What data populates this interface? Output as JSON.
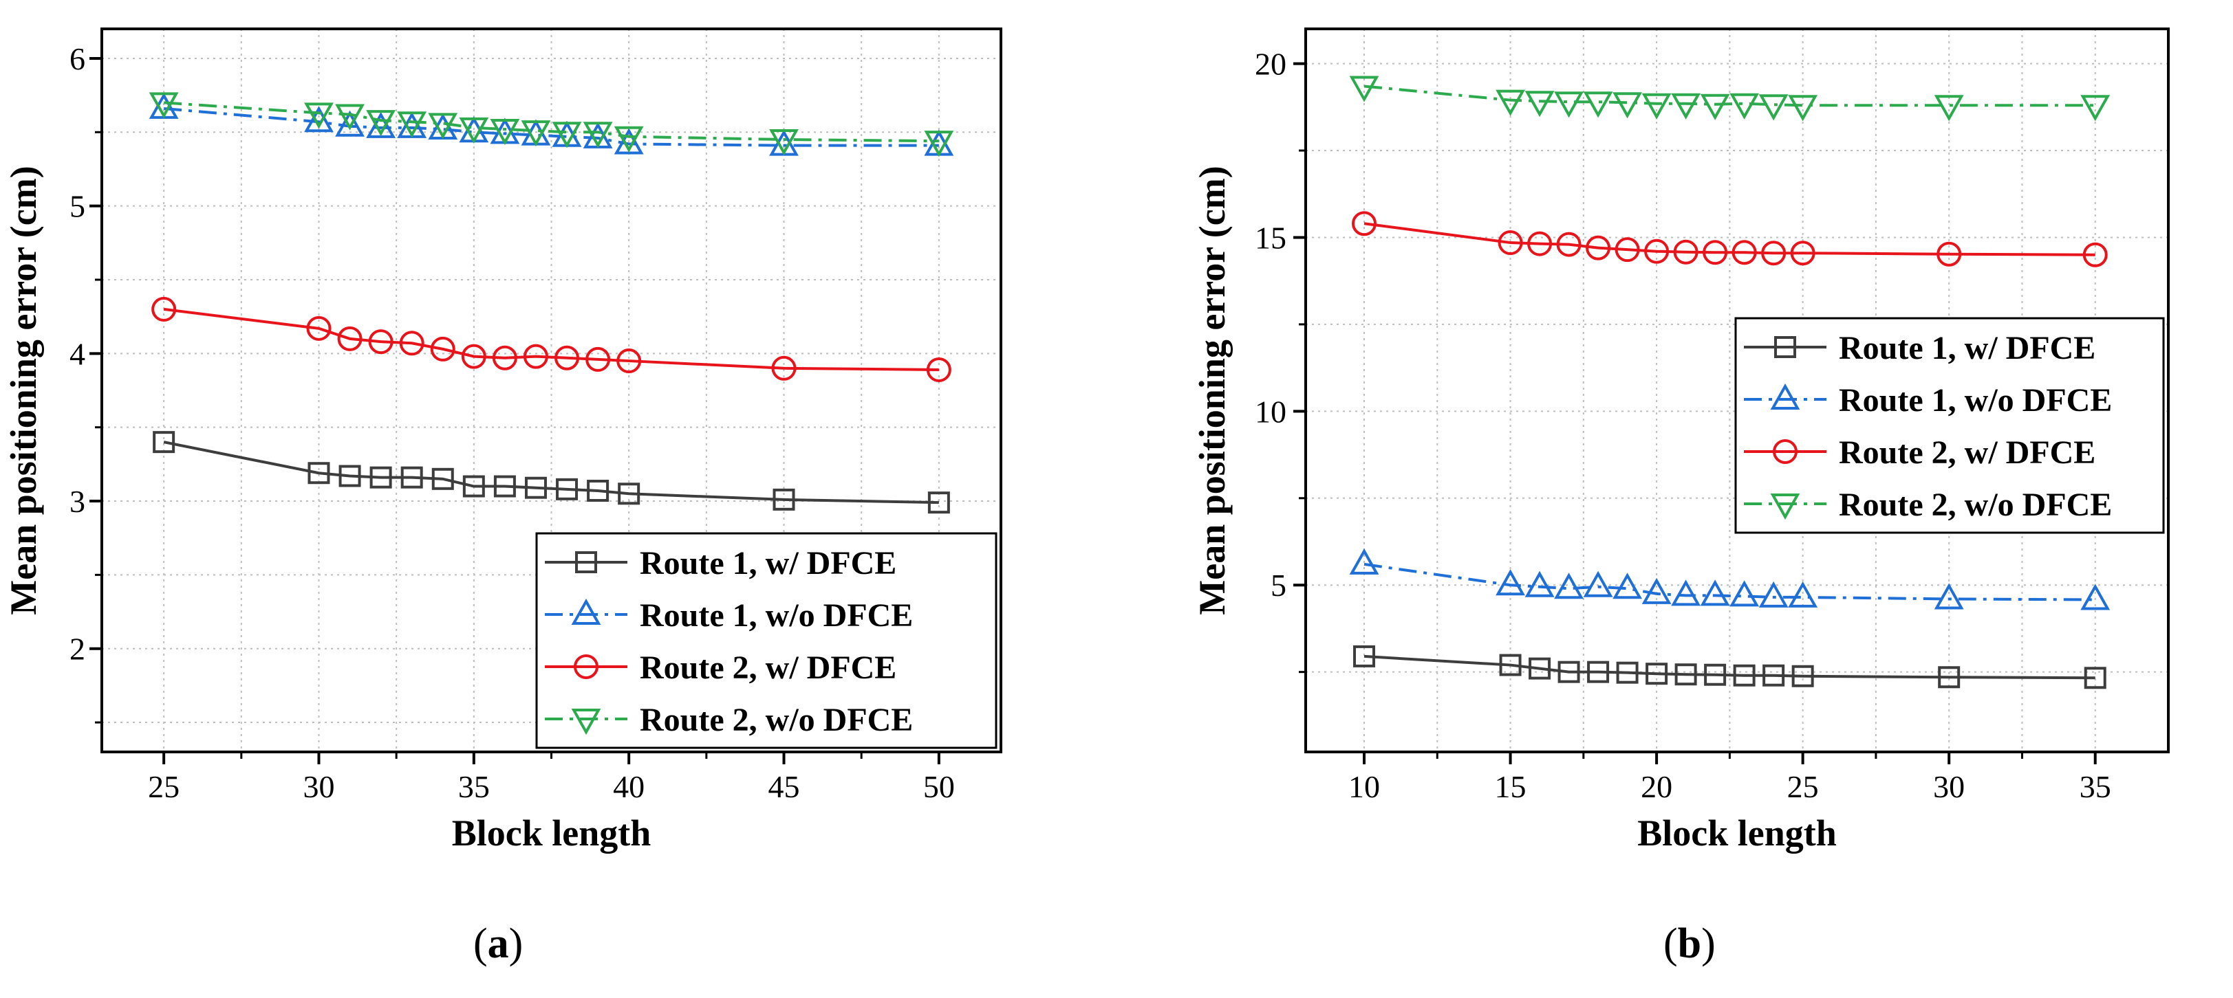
{
  "chart_data": [
    {
      "panel_label": "a",
      "type": "line",
      "xlabel": "Block length",
      "ylabel": "Mean positioning error (cm)",
      "xlim": [
        23,
        52
      ],
      "ylim": [
        1.3,
        6.2
      ],
      "xticks": [
        25,
        30,
        35,
        40,
        45,
        50
      ],
      "yticks": [
        2,
        3,
        4,
        5,
        6
      ],
      "grid": true,
      "legend_position": "bottom-right",
      "series": [
        {
          "name": "Route 1, w/   DFCE",
          "color": "#3d3d3d",
          "marker": "square",
          "dash": "solid",
          "x": [
            25,
            30,
            31,
            32,
            33,
            34,
            35,
            36,
            37,
            38,
            39,
            40,
            45,
            50
          ],
          "y": [
            3.4,
            3.19,
            3.17,
            3.16,
            3.16,
            3.15,
            3.1,
            3.1,
            3.09,
            3.08,
            3.07,
            3.05,
            3.01,
            2.99
          ]
        },
        {
          "name": "Route 1, w/o DFCE",
          "color": "#1f6fd6",
          "marker": "triangle-up",
          "dash": "dashdot",
          "x": [
            25,
            30,
            31,
            32,
            33,
            34,
            35,
            36,
            37,
            38,
            39,
            40,
            45,
            50
          ],
          "y": [
            5.66,
            5.57,
            5.54,
            5.53,
            5.53,
            5.52,
            5.5,
            5.49,
            5.48,
            5.47,
            5.46,
            5.42,
            5.41,
            5.41
          ]
        },
        {
          "name": "Route 2, w/   DFCE",
          "color": "#e8141b",
          "marker": "circle",
          "dash": "solid",
          "x": [
            25,
            30,
            31,
            32,
            33,
            34,
            35,
            36,
            37,
            38,
            39,
            40,
            45,
            50
          ],
          "y": [
            4.3,
            4.17,
            4.1,
            4.08,
            4.07,
            4.03,
            3.98,
            3.97,
            3.98,
            3.97,
            3.96,
            3.95,
            3.9,
            3.89
          ]
        },
        {
          "name": "Route 2, w/o DFCE",
          "color": "#2eaa4e",
          "marker": "triangle-down",
          "dash": "dashdot",
          "x": [
            25,
            30,
            31,
            32,
            33,
            34,
            35,
            36,
            37,
            38,
            39,
            40,
            45,
            50
          ],
          "y": [
            5.7,
            5.63,
            5.62,
            5.58,
            5.57,
            5.56,
            5.53,
            5.52,
            5.51,
            5.5,
            5.5,
            5.47,
            5.45,
            5.44
          ]
        }
      ]
    },
    {
      "panel_label": "b",
      "type": "line",
      "xlabel": "Block length",
      "ylabel": "Mean positioning error (cm)",
      "xlim": [
        8,
        37.5
      ],
      "ylim": [
        0.2,
        21
      ],
      "xticks": [
        10,
        15,
        20,
        25,
        30,
        35
      ],
      "yticks": [
        5,
        10,
        15,
        20
      ],
      "grid": true,
      "legend_position": "right",
      "series": [
        {
          "name": "Route 1, w/   DFCE",
          "color": "#3d3d3d",
          "marker": "square",
          "dash": "solid",
          "x": [
            10,
            15,
            16,
            17,
            18,
            19,
            20,
            21,
            22,
            23,
            24,
            25,
            30,
            35
          ],
          "y": [
            2.95,
            2.7,
            2.6,
            2.5,
            2.5,
            2.48,
            2.45,
            2.43,
            2.42,
            2.4,
            2.4,
            2.38,
            2.35,
            2.33
          ]
        },
        {
          "name": "Route 1, w/o DFCE",
          "color": "#1f6fd6",
          "marker": "triangle-up",
          "dash": "dashdot",
          "x": [
            10,
            15,
            16,
            17,
            18,
            19,
            20,
            21,
            22,
            23,
            24,
            25,
            30,
            35
          ],
          "y": [
            5.6,
            5.0,
            4.95,
            4.9,
            4.95,
            4.9,
            4.75,
            4.7,
            4.7,
            4.68,
            4.65,
            4.65,
            4.6,
            4.58
          ]
        },
        {
          "name": "Route 2, w/   DFCE",
          "color": "#e8141b",
          "marker": "circle",
          "dash": "solid",
          "x": [
            10,
            15,
            16,
            17,
            18,
            19,
            20,
            21,
            22,
            23,
            24,
            25,
            30,
            35
          ],
          "y": [
            15.4,
            14.85,
            14.82,
            14.8,
            14.7,
            14.65,
            14.6,
            14.58,
            14.57,
            14.57,
            14.55,
            14.55,
            14.52,
            14.5
          ]
        },
        {
          "name": "Route 2, w/o DFCE",
          "color": "#2eaa4e",
          "marker": "triangle-down",
          "dash": "dashdot",
          "x": [
            10,
            15,
            16,
            17,
            18,
            19,
            20,
            21,
            22,
            23,
            24,
            25,
            30,
            35
          ],
          "y": [
            19.35,
            18.95,
            18.92,
            18.9,
            18.9,
            18.88,
            18.85,
            18.85,
            18.83,
            18.85,
            18.82,
            18.8,
            18.8,
            18.8
          ]
        }
      ]
    }
  ]
}
